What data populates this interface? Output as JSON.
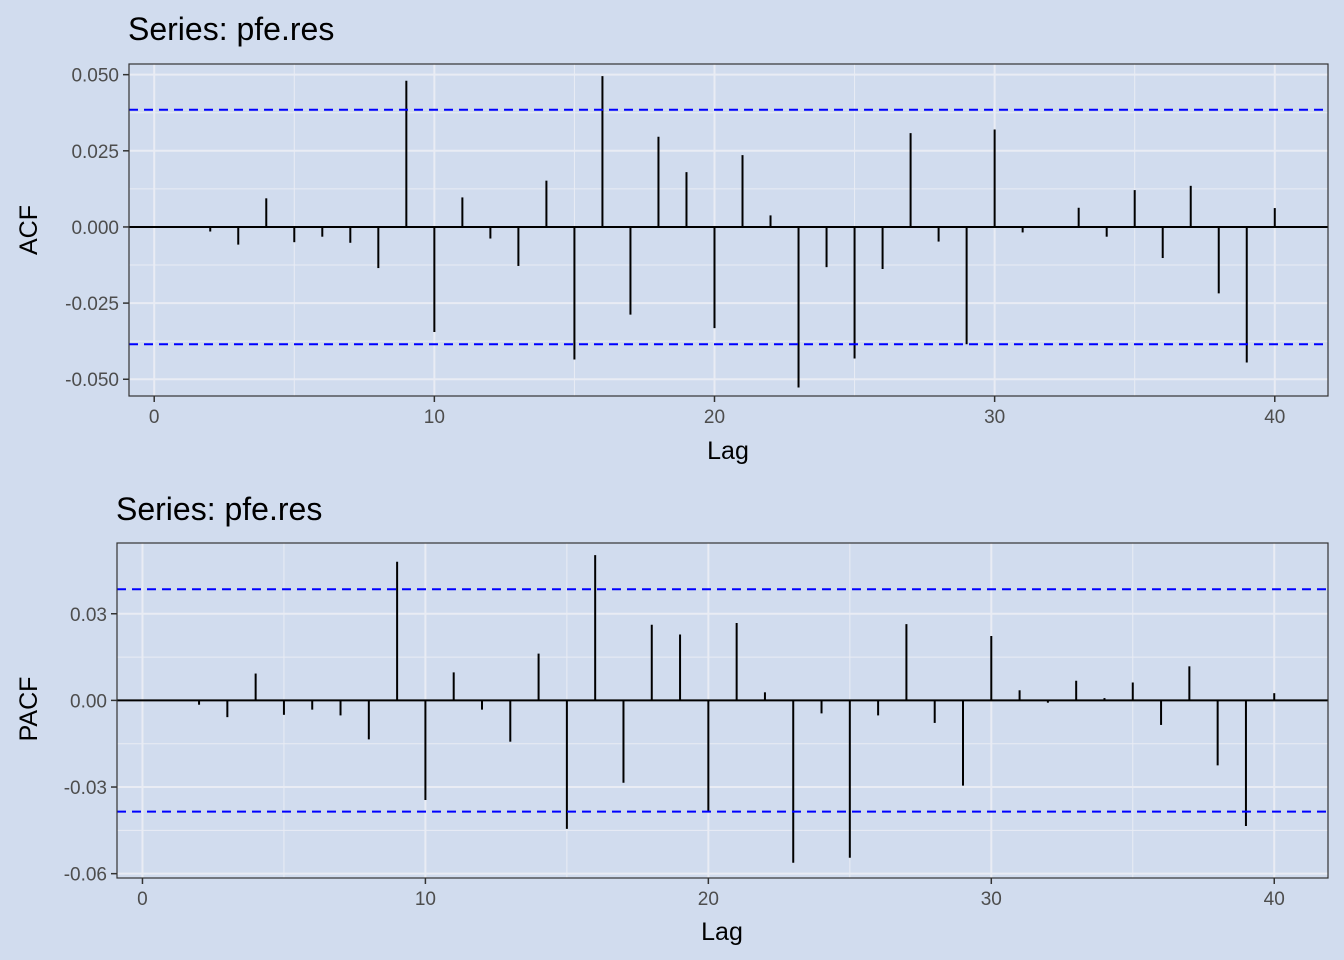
{
  "chart_data": [
    {
      "type": "bar",
      "title": "Series: pfe.res",
      "xlabel": "Lag",
      "ylabel": "ACF",
      "xlim": [
        -0.9,
        41.9
      ],
      "ylim": [
        -0.0555,
        0.0535
      ],
      "x_ticks": [
        0,
        10,
        20,
        30,
        40
      ],
      "x_tick_labels": [
        "0",
        "10",
        "20",
        "30",
        "40"
      ],
      "y_ticks": [
        0.05,
        0.025,
        0.0,
        -0.025,
        -0.05
      ],
      "y_tick_labels": [
        "0.050",
        "0.025",
        "0.000",
        "-0.025",
        "-0.050"
      ],
      "confidence_bound": 0.0385,
      "lags": [
        1,
        2,
        3,
        4,
        5,
        6,
        7,
        8,
        9,
        10,
        11,
        12,
        13,
        14,
        15,
        16,
        17,
        18,
        19,
        20,
        21,
        22,
        23,
        24,
        25,
        26,
        27,
        28,
        29,
        30,
        31,
        32,
        33,
        34,
        35,
        36,
        37,
        38,
        39,
        40
      ],
      "values": [
        0.0,
        -0.0015,
        -0.0058,
        0.0094,
        -0.005,
        -0.0032,
        -0.0052,
        -0.0135,
        0.048,
        -0.0345,
        0.0097,
        -0.0038,
        -0.0128,
        0.0152,
        -0.0435,
        0.0495,
        -0.0288,
        0.0296,
        0.018,
        -0.0332,
        0.0236,
        0.0038,
        -0.0527,
        -0.0132,
        -0.0432,
        -0.0138,
        0.0308,
        -0.0048,
        -0.0385,
        0.032,
        -0.0018,
        0.0,
        0.0063,
        -0.0032,
        0.0121,
        -0.0102,
        0.0135,
        -0.0218,
        -0.0445,
        0.0062
      ],
      "grid": true,
      "colors": {
        "bars": "#000000",
        "bounds": "#0000ff",
        "panel": "#d1dcee",
        "grid": "#e9ecf4"
      }
    },
    {
      "type": "bar",
      "title": "Series: pfe.res",
      "xlabel": "Lag",
      "ylabel": "PACF",
      "xlim": [
        -0.9,
        41.9
      ],
      "ylim": [
        -0.0615,
        0.0545
      ],
      "x_ticks": [
        0,
        10,
        20,
        30,
        40
      ],
      "x_tick_labels": [
        "0",
        "10",
        "20",
        "30",
        "40"
      ],
      "y_ticks": [
        0.03,
        0.0,
        -0.03,
        -0.06
      ],
      "y_tick_labels": [
        "0.03",
        "0.00",
        "-0.03",
        "-0.06"
      ],
      "confidence_bound": 0.0385,
      "lags": [
        1,
        2,
        3,
        4,
        5,
        6,
        7,
        8,
        9,
        10,
        11,
        12,
        13,
        14,
        15,
        16,
        17,
        18,
        19,
        20,
        21,
        22,
        23,
        24,
        25,
        26,
        27,
        28,
        29,
        30,
        31,
        32,
        33,
        34,
        35,
        36,
        37,
        38,
        39,
        40
      ],
      "values": [
        0.0,
        -0.0015,
        -0.0058,
        0.0093,
        -0.005,
        -0.0032,
        -0.0052,
        -0.0135,
        0.048,
        -0.0345,
        0.0097,
        -0.0032,
        -0.0143,
        0.0162,
        -0.0445,
        0.0503,
        -0.0285,
        0.0262,
        0.0228,
        -0.0385,
        0.0268,
        0.0028,
        -0.0562,
        -0.0045,
        -0.0545,
        -0.0052,
        0.0264,
        -0.0078,
        -0.0295,
        0.0223,
        0.0035,
        -0.0008,
        0.0068,
        0.0008,
        0.0062,
        -0.0085,
        0.0118,
        -0.0225,
        -0.0435,
        0.0025
      ],
      "grid": true,
      "colors": {
        "bars": "#000000",
        "bounds": "#0000ff",
        "panel": "#d1dcee",
        "grid": "#e9ecf4"
      }
    }
  ]
}
